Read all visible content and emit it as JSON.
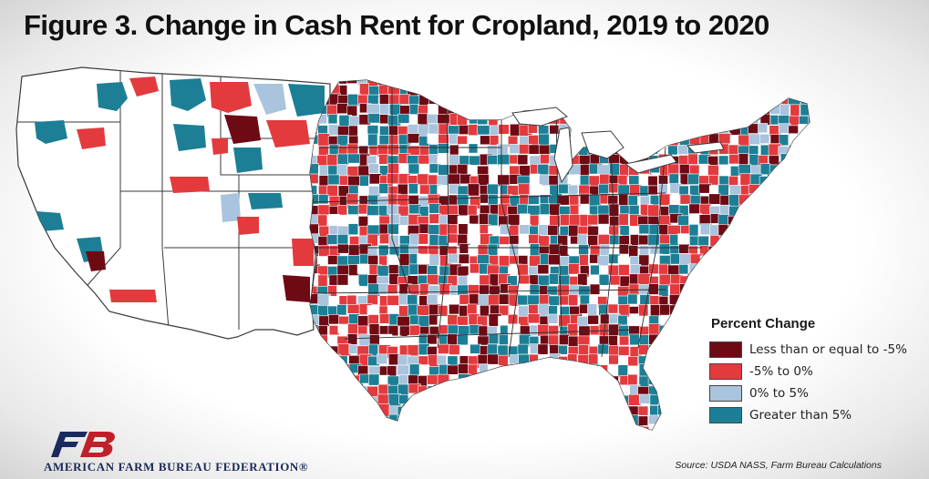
{
  "title": "Figure 3. Change in Cash Rent for Cropland, 2019 to 2020",
  "legend": {
    "title": "Percent Change",
    "items": [
      {
        "label": "Less than or equal to -5%",
        "color": "#6e0a14"
      },
      {
        "label": "-5% to 0%",
        "color": "#e33a3e"
      },
      {
        "label": "0% to 5%",
        "color": "#a9c4dc"
      },
      {
        "label": "Greater than 5%",
        "color": "#1c7f96"
      }
    ]
  },
  "colors": {
    "no_data": "#ffffff",
    "boundary": "#3a3a3a"
  },
  "map": {
    "region": "Contiguous United States",
    "unit": "county",
    "measure": "Percent change in cash rent for cropland, 2019 to 2020"
  },
  "logo": {
    "org_name": "AMERICAN FARM BUREAU FEDERATION®",
    "mark_colors": {
      "blue": "#1b2a5e",
      "red": "#c0202a"
    }
  },
  "source": "Source: USDA NASS, Farm Bureau Calculations"
}
